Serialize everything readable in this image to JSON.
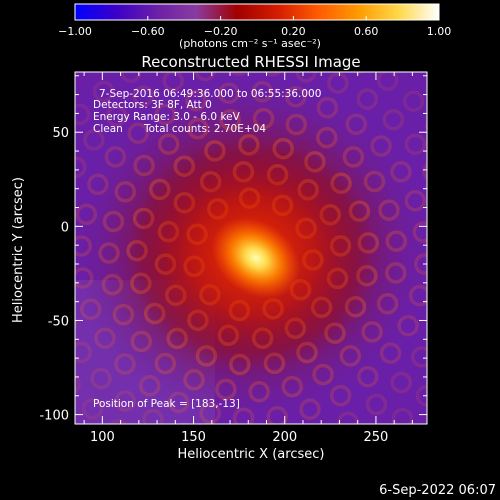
{
  "colorbar": {
    "ticks": [
      {
        "value": -1.0,
        "label": "−1.00"
      },
      {
        "value": -0.6,
        "label": "−0.60"
      },
      {
        "value": -0.2,
        "label": "−0.20"
      },
      {
        "value": 0.2,
        "label": "0.20"
      },
      {
        "value": 0.6,
        "label": "0.60"
      },
      {
        "value": 1.0,
        "label": "1.00"
      }
    ],
    "unit_label": "(photons cm⁻² s⁻¹ asec⁻²)",
    "colors": [
      "#0000ff",
      "#3a00c8",
      "#6a1fa8",
      "#8a3ba0",
      "#a00000",
      "#d41c00",
      "#ff5a00",
      "#ff9a00",
      "#ffd84a",
      "#ffffff"
    ]
  },
  "chart_data": {
    "type": "heatmap",
    "title": "Reconstructed RHESSI Image",
    "xlabel": "Heliocentric X (arcsec)",
    "ylabel": "Heliocentric Y (arcsec)",
    "xlim": [
      85,
      278
    ],
    "ylim": [
      -105,
      82
    ],
    "xticks": [
      100,
      150,
      200,
      250
    ],
    "yticks": [
      50,
      0,
      -50,
      -100
    ],
    "peak": {
      "x": 183,
      "y": -13
    },
    "value_range": [
      -1.0,
      1.0
    ],
    "annotations": {
      "time_range": "7-Sep-2016 06:49:36.000 to 06:55:36.000",
      "detectors": "Detectors: 3F 8F, Att 0",
      "energy": "Energy Range: 3.0 - 6.0 keV",
      "clean_label": "Clean",
      "total_counts": "Total counts: 2.70E+04",
      "peak_text": "Position of Peak = [183,-13]"
    }
  },
  "footer": {
    "timestamp": "6-Sep-2022 06:07"
  }
}
